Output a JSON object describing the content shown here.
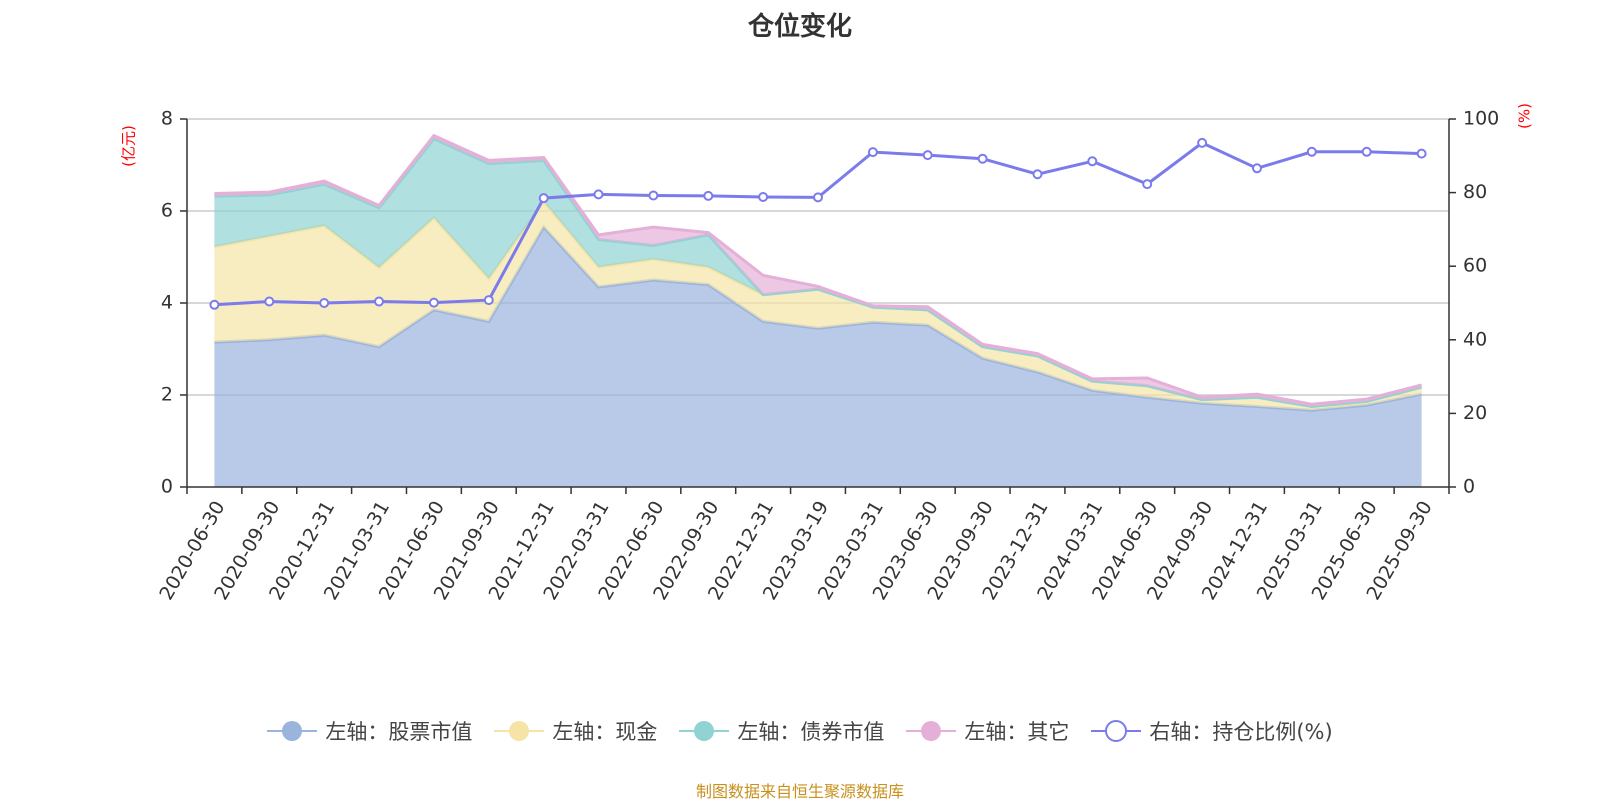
{
  "chart_data": {
    "type": "area",
    "title": "仓位变化",
    "categories": [
      "2020-06-30",
      "2020-09-30",
      "2020-12-31",
      "2021-03-31",
      "2021-06-30",
      "2021-09-30",
      "2021-12-31",
      "2022-03-31",
      "2022-06-30",
      "2022-09-30",
      "2022-12-31",
      "2023-03-19",
      "2023-03-31",
      "2023-06-30",
      "2023-09-30",
      "2023-12-31",
      "2024-03-31",
      "2024-06-30",
      "2024-09-30",
      "2024-12-31",
      "2025-03-31",
      "2025-06-30",
      "2025-09-30"
    ],
    "left_axis": {
      "label": "(亿元)",
      "ylim": [
        0,
        8
      ],
      "ticks": [
        "0",
        "2",
        "4",
        "6",
        "8"
      ]
    },
    "right_axis": {
      "label": "(%)",
      "ylim": [
        0,
        100
      ],
      "ticks": [
        "0",
        "20",
        "40",
        "60",
        "80",
        "100"
      ]
    },
    "series": [
      {
        "name": "左轴：股票市值",
        "axis": "left",
        "stacked": true,
        "color": "#9ab4de",
        "values": [
          3.15,
          3.2,
          3.3,
          3.05,
          3.85,
          3.6,
          5.65,
          4.35,
          4.5,
          4.4,
          3.6,
          3.45,
          3.58,
          3.52,
          2.8,
          2.5,
          2.1,
          1.95,
          1.82,
          1.75,
          1.67,
          1.78,
          2.02
        ]
      },
      {
        "name": "左轴：现金",
        "axis": "left",
        "stacked": true,
        "color": "#f5e4a6",
        "values": [
          2.07,
          2.25,
          2.38,
          1.72,
          2.0,
          0.93,
          0.55,
          0.43,
          0.45,
          0.38,
          0.58,
          0.85,
          0.33,
          0.33,
          0.25,
          0.35,
          0.2,
          0.25,
          0.08,
          0.2,
          0.08,
          0.08,
          0.15
        ]
      },
      {
        "name": "左轴：债券市值",
        "axis": "left",
        "stacked": true,
        "color": "#8fd3d3",
        "values": [
          1.1,
          0.9,
          0.9,
          1.3,
          1.72,
          2.5,
          0.9,
          0.6,
          0.3,
          0.7,
          0.0,
          0.0,
          0.0,
          0.0,
          0.0,
          0.0,
          0.0,
          0.0,
          0.0,
          0.0,
          0.0,
          0.0,
          0.0
        ]
      },
      {
        "name": "左轴：其它",
        "axis": "left",
        "stacked": true,
        "color": "#e5b0d8",
        "values": [
          0.06,
          0.06,
          0.07,
          0.05,
          0.07,
          0.07,
          0.06,
          0.1,
          0.4,
          0.05,
          0.42,
          0.06,
          0.03,
          0.07,
          0.05,
          0.05,
          0.05,
          0.17,
          0.05,
          0.07,
          0.05,
          0.05,
          0.05
        ]
      },
      {
        "name": "右轴：持仓比例(%)",
        "axis": "right",
        "type": "line",
        "color": "#7b7bec",
        "values": [
          49.5,
          50.4,
          50,
          50.4,
          50.1,
          50.8,
          78.5,
          79.5,
          79.2,
          79.1,
          78.8,
          78.7,
          91,
          90.2,
          89.2,
          85,
          88.5,
          82.3,
          93.5,
          86.6,
          91.1,
          91.1,
          90.6
        ]
      }
    ],
    "legend_position": "bottom",
    "grid": true,
    "source": "制图数据来自恒生聚源数据库"
  }
}
